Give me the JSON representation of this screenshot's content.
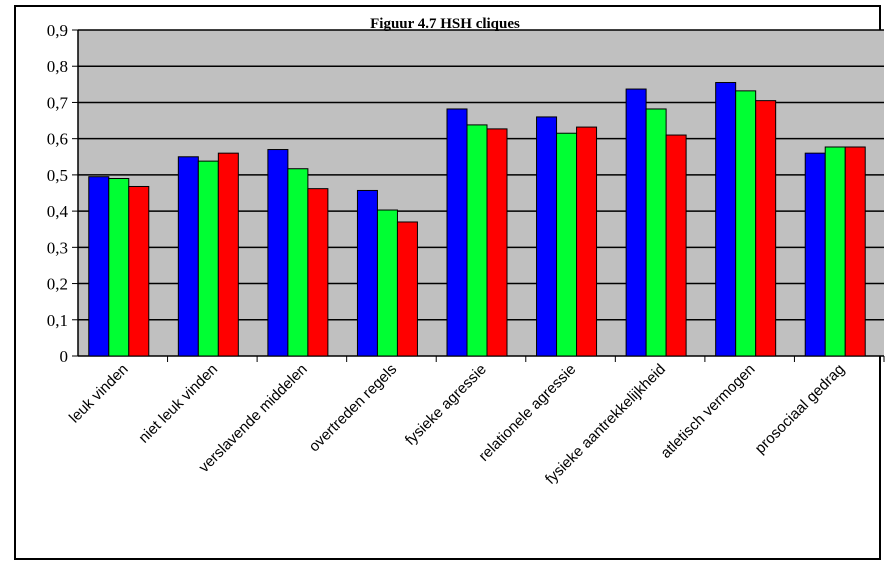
{
  "chart_data": {
    "type": "bar",
    "title": "Figuur 4.7 HSH cliques",
    "categories": [
      "leuk vinden",
      "niet leuk vinden",
      "verslavende middelen",
      "overtreden regels",
      "fysieke agressie",
      "relationele agressie",
      "fysieke aantrekkelijkheid",
      "atletisch vermogen",
      "prosociaal gedrag"
    ],
    "series": [
      {
        "color": "#0000FF",
        "values": [
          0.495,
          0.55,
          0.57,
          0.457,
          0.682,
          0.66,
          0.737,
          0.755,
          0.56
        ]
      },
      {
        "color": "#00FF33",
        "values": [
          0.49,
          0.538,
          0.517,
          0.403,
          0.638,
          0.615,
          0.682,
          0.732,
          0.577
        ]
      },
      {
        "color": "#FF0000",
        "values": [
          0.468,
          0.56,
          0.462,
          0.37,
          0.627,
          0.632,
          0.61,
          0.705,
          0.577
        ]
      }
    ],
    "ylim": [
      0,
      0.9
    ],
    "yticks": [
      "0",
      "0,1",
      "0,2",
      "0,3",
      "0,4",
      "0,5",
      "0,6",
      "0,7",
      "0,8",
      "0,9"
    ],
    "plot_background": "#C0C0C0",
    "gridlines": true,
    "legend": "none"
  }
}
